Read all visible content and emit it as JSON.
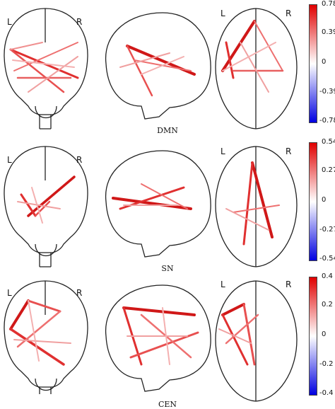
{
  "panels": [
    {
      "network_label": "DMN",
      "colorbar": {
        "max": "0.78",
        "upper": "0.39",
        "zero": "0",
        "lower": "-0.39",
        "min": "-0.78"
      },
      "side_labels": {
        "left": "L",
        "right": "R"
      }
    },
    {
      "network_label": "SN",
      "colorbar": {
        "max": "0.54",
        "upper": "0.27",
        "zero": "0",
        "lower": "-0.27",
        "min": "-0.54"
      },
      "side_labels": {
        "left": "L",
        "right": "R"
      }
    },
    {
      "network_label": "CEN",
      "colorbar": {
        "max": "0.4",
        "upper": "0.2",
        "zero": "0",
        "lower": "-0.2",
        "min": "-0.4"
      },
      "side_labels": {
        "left": "L",
        "right": "R"
      }
    }
  ],
  "colors": {
    "positive": "#e00000",
    "negative": "#0000e0",
    "neutral": "#ffffff",
    "outline": "#222222"
  }
}
